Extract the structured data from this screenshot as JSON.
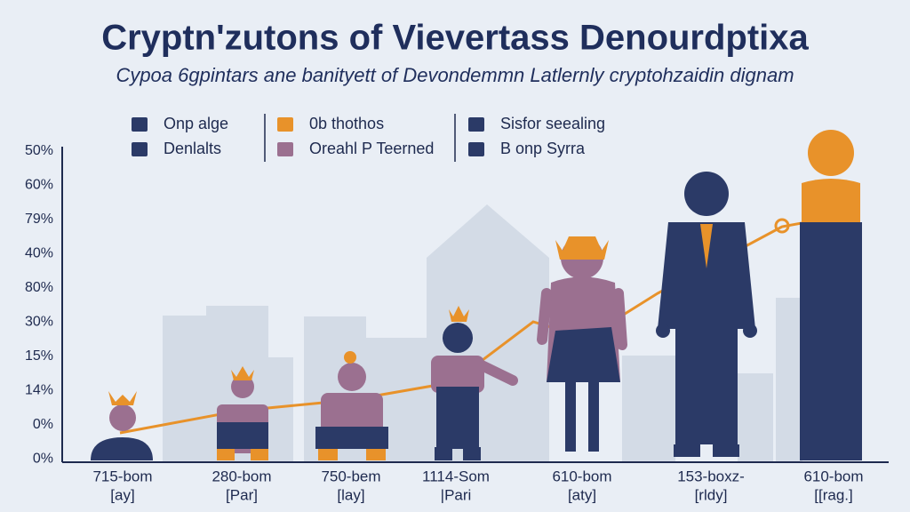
{
  "header": {
    "title": "Cryptn'zutons of Vievertass Denourdptixa",
    "subtitle": "Cypoa 6gpintars ane banityett of Devondemmn Latlernly cryptohzaidin dignam"
  },
  "legend": {
    "columns": [
      [
        {
          "label": "Onp alge",
          "color": "#2b3a67"
        },
        {
          "label": "Denlalts",
          "color": "#2b3a67"
        }
      ],
      [
        {
          "label": "0b thothos",
          "color": "#e8922a"
        },
        {
          "label": "Oreahl P Teerned",
          "color": "#9b7090"
        }
      ],
      [
        {
          "label": "Sisfor seealing",
          "color": "#2b3a67"
        },
        {
          "label": "B onp Syrra",
          "color": "#2b3a67"
        }
      ]
    ]
  },
  "y_axis_labels": [
    "50%",
    "60%",
    "79%",
    "40%",
    "80%",
    "30%",
    "15%",
    "14%",
    "0%",
    "0%"
  ],
  "x_labels": [
    [
      "715-bom",
      "[ay]"
    ],
    [
      "280-bom",
      "[Par]"
    ],
    [
      "750-bem",
      "[lay]"
    ],
    [
      "1114-Som",
      "|Pari"
    ],
    [
      "610-bom",
      "[aty]"
    ],
    [
      "153-boxz-",
      "[rldy]"
    ],
    [
      "610-bom",
      "[[rag.]"
    ]
  ]
}
